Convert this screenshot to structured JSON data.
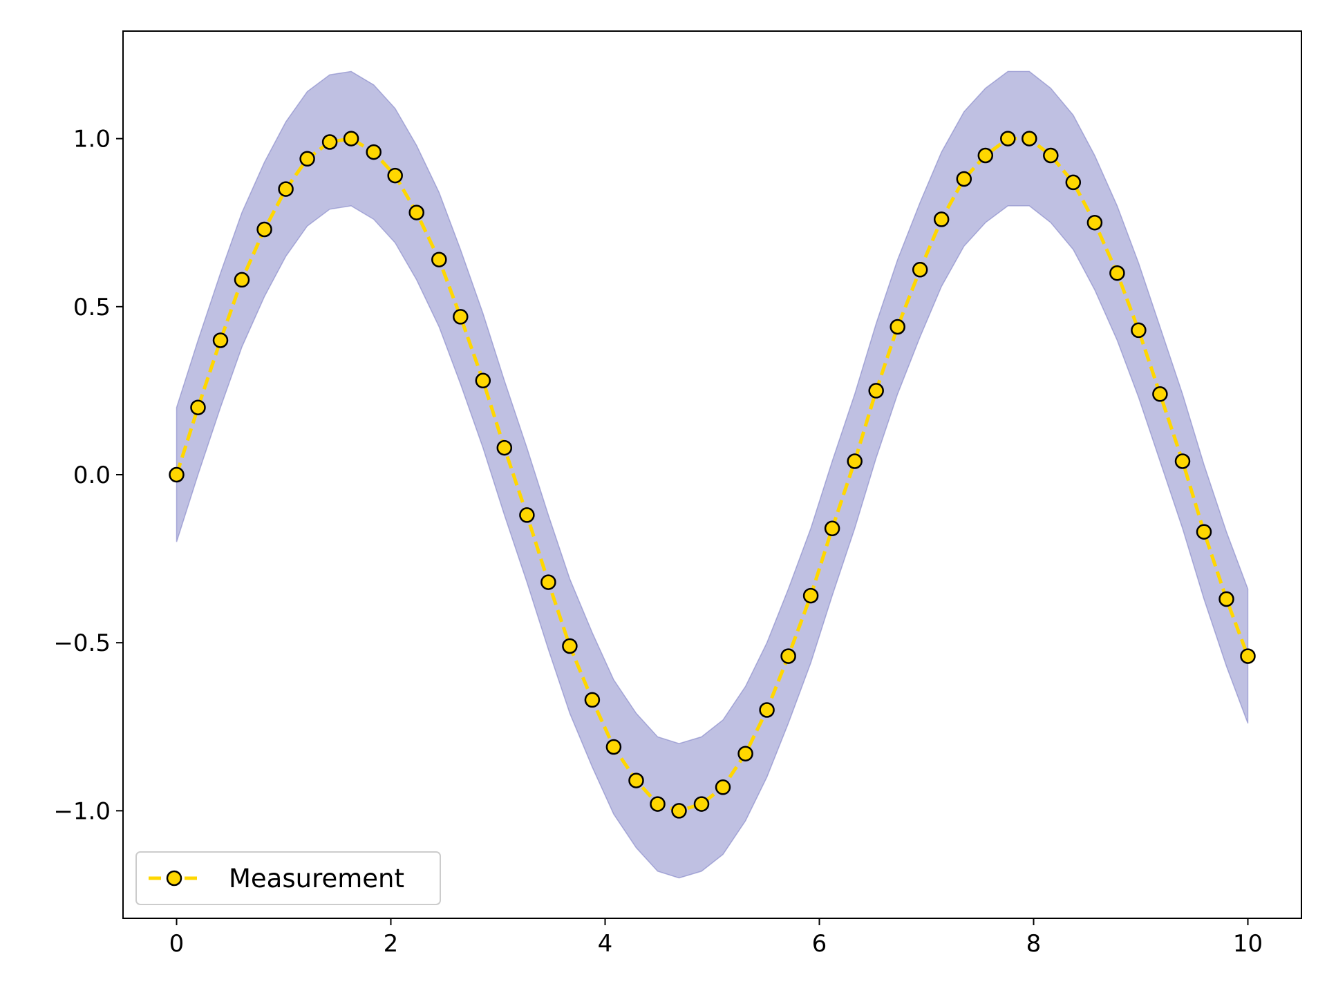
{
  "chart_data": {
    "type": "line",
    "title": "",
    "xlabel": "",
    "ylabel": "",
    "xlim": [
      -0.5,
      10.5
    ],
    "ylim": [
      -1.32,
      1.32
    ],
    "xticks": [
      0,
      2,
      4,
      6,
      8,
      10
    ],
    "xtick_labels": [
      "0",
      "2",
      "4",
      "6",
      "8",
      "10"
    ],
    "yticks": [
      -1.0,
      -0.5,
      0.0,
      0.5,
      1.0
    ],
    "ytick_labels": [
      "−1.0",
      "−0.5",
      "0.0",
      "0.5",
      "1.0"
    ],
    "grid": false,
    "legend_position": "lower-left",
    "band": {
      "description": "shaded region around the measurement",
      "offset": 0.2,
      "color": "#8a8ccb"
    },
    "series": [
      {
        "name": "Measurement",
        "color": "#ffd700",
        "marker_edge_color": "#000000",
        "line_style": "dashed",
        "marker": "circle",
        "x": [
          0.0,
          0.2,
          0.41,
          0.61,
          0.82,
          1.02,
          1.22,
          1.43,
          1.63,
          1.84,
          2.04,
          2.24,
          2.45,
          2.65,
          2.86,
          3.06,
          3.27,
          3.47,
          3.67,
          3.88,
          4.08,
          4.29,
          4.49,
          4.69,
          4.9,
          5.1,
          5.31,
          5.51,
          5.71,
          5.92,
          6.12,
          6.33,
          6.53,
          6.73,
          6.94,
          7.14,
          7.35,
          7.55,
          7.76,
          7.96,
          8.16,
          8.37,
          8.57,
          8.78,
          8.98,
          9.18,
          9.39,
          9.59,
          9.8,
          10.0
        ],
        "y": [
          0.0,
          0.2,
          0.4,
          0.58,
          0.73,
          0.85,
          0.94,
          0.99,
          1.0,
          0.96,
          0.89,
          0.78,
          0.64,
          0.47,
          0.28,
          0.08,
          -0.12,
          -0.32,
          -0.51,
          -0.67,
          -0.81,
          -0.91,
          -0.98,
          -1.0,
          -0.98,
          -0.93,
          -0.83,
          -0.7,
          -0.54,
          -0.36,
          -0.16,
          0.04,
          0.25,
          0.44,
          0.61,
          0.76,
          0.88,
          0.95,
          1.0,
          1.0,
          0.95,
          0.87,
          0.75,
          0.6,
          0.43,
          0.24,
          0.04,
          -0.17,
          -0.37,
          -0.54
        ]
      }
    ]
  }
}
